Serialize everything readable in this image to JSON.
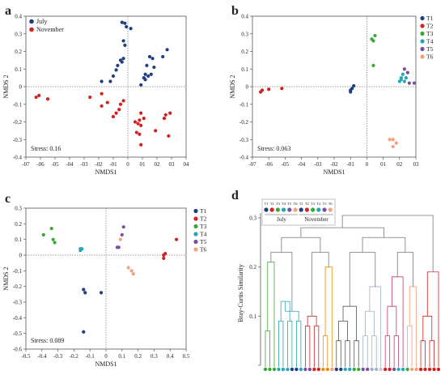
{
  "chart_data": [
    {
      "panel": "a",
      "type": "scatter",
      "title": "",
      "xlabel": "NMDS1",
      "ylabel": "NMDS 2",
      "xlim": [
        -0.07,
        0.04
      ],
      "ylim": [
        -0.4,
        0.4
      ],
      "x_ticks": [
        -0.07,
        -0.06,
        -0.05,
        -0.04,
        -0.03,
        -0.02,
        -0.01,
        0,
        0.01,
        0.02,
        0.03,
        0.04
      ],
      "x_tick_labels": [
        "-07",
        "-06",
        "-05",
        "-04",
        "-03",
        "-02",
        "-01",
        "0",
        "01",
        "02",
        "03",
        "04"
      ],
      "y_ticks": [
        -0.4,
        -0.3,
        -0.2,
        -0.1,
        0,
        0.1,
        0.2,
        0.3,
        0.4
      ],
      "y_tick_labels": [
        "-0.4",
        "-0.3",
        "-0.2",
        "-0.1",
        "0",
        "0.1",
        "0.2",
        "0.3",
        "0.4"
      ],
      "stress": "Stress: 0.16",
      "legend": "top-left",
      "series": [
        {
          "name": "July",
          "color": "#1f3f80",
          "points": [
            [
              -0.004,
              0.365
            ],
            [
              -0.002,
              0.36
            ],
            [
              -0.001,
              0.34
            ],
            [
              0.002,
              0.33
            ],
            [
              -0.003,
              0.26
            ],
            [
              -0.002,
              0.235
            ],
            [
              -0.005,
              0.15
            ],
            [
              -0.003,
              0.16
            ],
            [
              -0.004,
              0.14
            ],
            [
              -0.007,
              0.12
            ],
            [
              -0.008,
              0.095
            ],
            [
              -0.01,
              0.06
            ],
            [
              -0.018,
              0.03
            ],
            [
              -0.012,
              0.03
            ],
            [
              0.012,
              0.04
            ],
            [
              0.014,
              0.06
            ],
            [
              0.016,
              0.07
            ],
            [
              0.018,
              0.11
            ],
            [
              0.015,
              0.17
            ],
            [
              0.017,
              0.16
            ],
            [
              0.024,
              0.17
            ],
            [
              0.027,
              0.21
            ],
            [
              0.013,
              0.12
            ],
            [
              0.012,
              0.07
            ],
            [
              0.011,
              0.05
            ],
            [
              0.009,
              0.01
            ]
          ]
        },
        {
          "name": "November",
          "color": "#d42020",
          "points": [
            [
              -0.063,
              -0.06
            ],
            [
              -0.061,
              -0.05
            ],
            [
              -0.055,
              -0.07
            ],
            [
              -0.026,
              -0.06
            ],
            [
              -0.018,
              -0.04
            ],
            [
              -0.014,
              -0.09
            ],
            [
              -0.018,
              -0.11
            ],
            [
              -0.003,
              -0.08
            ],
            [
              -0.005,
              -0.1
            ],
            [
              -0.006,
              -0.13
            ],
            [
              -0.008,
              -0.15
            ],
            [
              -0.01,
              -0.17
            ],
            [
              0.005,
              -0.2
            ],
            [
              0.007,
              -0.21
            ],
            [
              0.008,
              -0.19
            ],
            [
              0.009,
              -0.22
            ],
            [
              0.011,
              -0.18
            ],
            [
              0.006,
              -0.26
            ],
            [
              0.008,
              -0.27
            ],
            [
              0.009,
              -0.33
            ],
            [
              0.019,
              -0.25
            ],
            [
              0.026,
              -0.16
            ],
            [
              0.029,
              -0.15
            ],
            [
              0.025,
              -0.18
            ],
            [
              0.028,
              -0.28
            ],
            [
              0.009,
              -0.15
            ]
          ]
        }
      ]
    },
    {
      "panel": "b",
      "type": "scatter",
      "title": "",
      "xlabel": "NMDS1",
      "ylabel": "NMDS 2",
      "xlim": [
        -0.07,
        0.03
      ],
      "ylim": [
        -0.4,
        0.4
      ],
      "x_ticks": [
        -0.07,
        -0.06,
        -0.05,
        -0.04,
        -0.03,
        -0.02,
        -0.01,
        0,
        0.01,
        0.02,
        0.03
      ],
      "x_tick_labels": [
        "-07",
        "-06",
        "-05",
        "-04",
        "-03",
        "-02",
        "-01",
        "0",
        "01",
        "02",
        "03"
      ],
      "y_ticks": [
        -0.4,
        -0.3,
        -0.2,
        -0.1,
        0,
        0.1,
        0.2,
        0.3,
        0.4
      ],
      "y_tick_labels": [
        "-0.4",
        "-0.3",
        "-0.2",
        "-0.1",
        "0",
        "0.1",
        "0.2",
        "0.3",
        "0.4"
      ],
      "stress": "Stress: 0.063",
      "legend": "right",
      "series": [
        {
          "name": "T1",
          "color": "#1f3f80",
          "points": [
            [
              -0.01,
              -0.02
            ],
            [
              -0.009,
              -0.01
            ],
            [
              -0.008,
              0.005
            ],
            [
              -0.01,
              -0.03
            ]
          ]
        },
        {
          "name": "T2",
          "color": "#d42020",
          "points": [
            [
              -0.065,
              -0.03
            ],
            [
              -0.064,
              -0.02
            ],
            [
              -0.06,
              -0.015
            ],
            [
              -0.052,
              -0.01
            ]
          ]
        },
        {
          "name": "T3",
          "color": "#3aa835",
          "points": [
            [
              0.003,
              0.27
            ],
            [
              0.004,
              0.26
            ],
            [
              0.005,
              0.29
            ],
            [
              0.004,
              0.12
            ]
          ]
        },
        {
          "name": "T4",
          "color": "#28a6b5",
          "points": [
            [
              0.02,
              0.03
            ],
            [
              0.021,
              0.05
            ],
            [
              0.022,
              0.07
            ],
            [
              0.023,
              0.03
            ],
            [
              0.024,
              0.05
            ],
            [
              0.021,
              0.04
            ]
          ]
        },
        {
          "name": "T5",
          "color": "#7a4fa0",
          "points": [
            [
              0.023,
              0.1
            ],
            [
              0.025,
              0.08
            ],
            [
              0.026,
              0.02
            ],
            [
              0.029,
              0.02
            ]
          ]
        },
        {
          "name": "T6",
          "color": "#f4a07a",
          "points": [
            [
              0.014,
              -0.3
            ],
            [
              0.016,
              -0.3
            ],
            [
              0.016,
              -0.34
            ],
            [
              0.018,
              -0.32
            ]
          ]
        }
      ]
    },
    {
      "panel": "c",
      "type": "scatter",
      "title": "",
      "xlabel": "NMDS1",
      "ylabel": "NMDS 2",
      "xlim": [
        -0.5,
        0.5
      ],
      "ylim": [
        -0.6,
        0.3
      ],
      "x_ticks": [
        -0.5,
        -0.4,
        -0.3,
        -0.2,
        -0.1,
        0,
        0.1,
        0.2,
        0.3,
        0.4,
        0.5
      ],
      "x_tick_labels": [
        "-0.5",
        "-0.4",
        "-0.3",
        "-0.2",
        "-0.1",
        "0",
        "0.1",
        "0.2",
        "0.3",
        "0.4",
        "0.5"
      ],
      "y_ticks": [
        -0.6,
        -0.5,
        -0.4,
        -0.3,
        -0.2,
        -0.1,
        0,
        0.1,
        0.2,
        0.3
      ],
      "y_tick_labels": [
        "-0.6",
        "-0.5",
        "-0.4",
        "-0.3",
        "-0.2",
        "-0.1",
        "0",
        "0.1",
        "0.2",
        "0.3"
      ],
      "stress": "Stress: 0.089",
      "legend": "right",
      "series": [
        {
          "name": "T1",
          "color": "#1f3f80",
          "points": [
            [
              -0.14,
              -0.22
            ],
            [
              -0.13,
              -0.24
            ],
            [
              -0.03,
              -0.24
            ],
            [
              -0.14,
              -0.49
            ]
          ]
        },
        {
          "name": "T2",
          "color": "#d42020",
          "points": [
            [
              0.36,
              0.0
            ],
            [
              0.37,
              0.01
            ],
            [
              0.36,
              -0.02
            ],
            [
              0.44,
              0.1
            ]
          ]
        },
        {
          "name": "T3",
          "color": "#3aa835",
          "points": [
            [
              -0.39,
              0.13
            ],
            [
              -0.34,
              0.17
            ],
            [
              -0.33,
              0.1
            ],
            [
              -0.32,
              0.08
            ]
          ]
        },
        {
          "name": "T4",
          "color": "#28a6b5",
          "points": [
            [
              -0.16,
              0.03
            ],
            [
              -0.15,
              0.04
            ],
            [
              -0.16,
              0.04
            ]
          ]
        },
        {
          "name": "T5",
          "color": "#7a4fa0",
          "points": [
            [
              0.07,
              0.05
            ],
            [
              0.08,
              0.05
            ],
            [
              0.1,
              0.13
            ],
            [
              0.11,
              0.18
            ]
          ]
        },
        {
          "name": "T6",
          "color": "#f4a07a",
          "points": [
            [
              0.09,
              0.1
            ],
            [
              0.14,
              -0.08
            ],
            [
              0.16,
              -0.1
            ],
            [
              0.17,
              -0.12
            ]
          ]
        }
      ]
    },
    {
      "panel": "d",
      "type": "dendrogram",
      "title": "",
      "ylabel": "Bray-Curtis Similarity",
      "ylim": [
        0,
        0.3
      ],
      "y_ticks": [
        0,
        0.1,
        0.2,
        0.3
      ],
      "y_tick_labels": [
        "",
        "0.1",
        "0.2",
        "0.3"
      ],
      "legend": "top-left",
      "legend_labels": [
        "T1",
        "T2",
        "T3",
        "T4",
        "T5",
        "T6"
      ],
      "legend_colors": [
        "#1f3f80",
        "#d42020",
        "#3aa835",
        "#28a6b5",
        "#7a4fa0",
        "#f4a07a"
      ],
      "legend_groups": [
        "July",
        "November"
      ],
      "leaf_colors": [
        "#3aa835",
        "#3aa835",
        "#3aa835",
        "#28a6b5",
        "#28a6b5",
        "#28a6b5",
        "#1f3f80",
        "#1f3f80",
        "#28a6b5",
        "#7a4fa0",
        "#7a4fa0",
        "#d42020",
        "#d42020",
        "#e89000",
        "#e89000",
        "#f4a07a",
        "#1f3f80",
        "#1f3f80",
        "#28a6b5",
        "#28a6b5",
        "#3aa835",
        "#3aa835",
        "#7a4fa0",
        "#7a4fa0",
        "#9fb0c8",
        "#9fb0c8",
        "#c8c8c8",
        "#d42020",
        "#d42020",
        "#7a4fa0",
        "#28a6b5",
        "#28a6b5",
        "#3aa835",
        "#f4a07a",
        "#f4a07a",
        "#d42020",
        "#d42020",
        "#d42020",
        "#d42020",
        "#d42020"
      ]
    }
  ]
}
